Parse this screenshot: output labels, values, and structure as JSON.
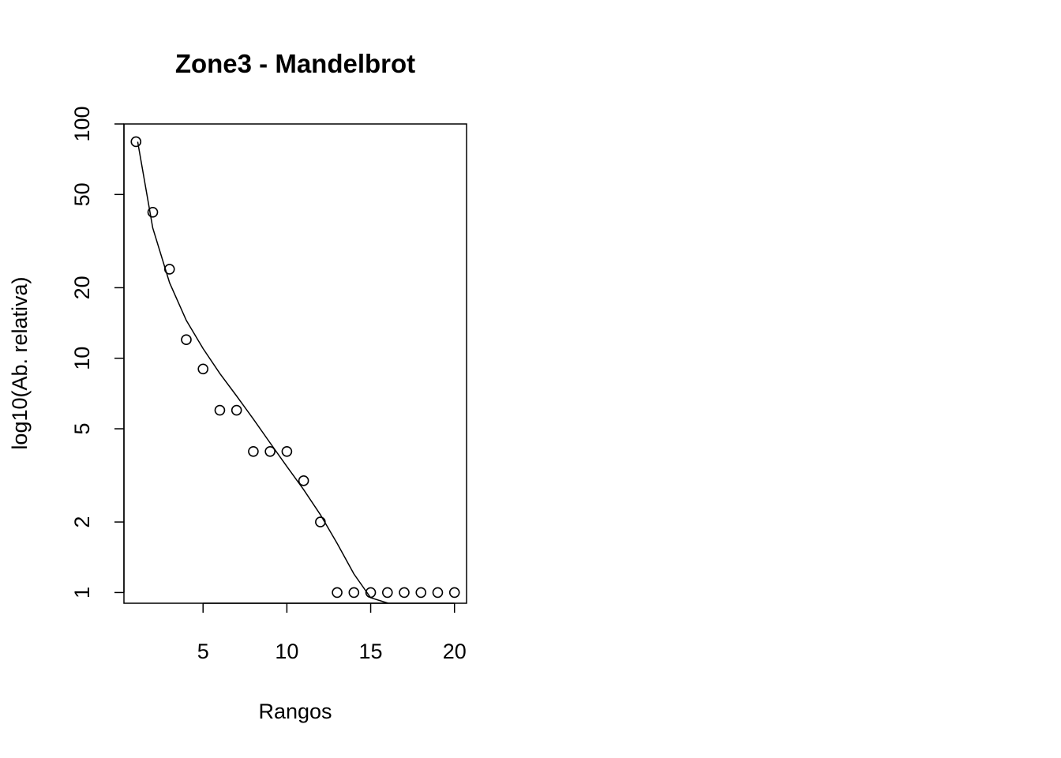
{
  "chart_data": {
    "type": "scatter",
    "title": "Zone3 - Mandelbrot",
    "xlabel": "Rangos",
    "ylabel": "log10(Ab. relativa)",
    "y_scale": "log",
    "xlim": [
      0.28,
      20.72
    ],
    "ylim": [
      0.9,
      100
    ],
    "x_ticks": [
      5,
      10,
      15,
      20
    ],
    "x_tick_labels": [
      "5",
      "10",
      "15",
      "20"
    ],
    "y_ticks": [
      1,
      2,
      5,
      10,
      20,
      50,
      100
    ],
    "y_tick_labels": [
      "1",
      "2",
      "5",
      "10",
      "20",
      "50",
      "100"
    ],
    "grid": false,
    "legend": "none",
    "series": [
      {
        "kind": "points",
        "x": [
          1,
          2,
          3,
          4,
          5,
          6,
          7,
          8,
          9,
          10,
          11,
          12,
          13,
          14,
          15,
          16,
          17,
          18,
          19,
          20
        ],
        "y": [
          84,
          42,
          24,
          12,
          9,
          6,
          6,
          4,
          4,
          4,
          3,
          2,
          1,
          1,
          1,
          1,
          1,
          1,
          1,
          1
        ]
      },
      {
        "kind": "line",
        "x": [
          1.1,
          2,
          3,
          4,
          5,
          6,
          7,
          8,
          9,
          10,
          11,
          12,
          13,
          14,
          15,
          16.05
        ],
        "y": [
          84,
          36,
          21,
          14.5,
          11,
          8.6,
          6.9,
          5.5,
          4.35,
          3.45,
          2.75,
          2.15,
          1.62,
          1.2,
          0.95,
          0.9
        ]
      }
    ]
  }
}
